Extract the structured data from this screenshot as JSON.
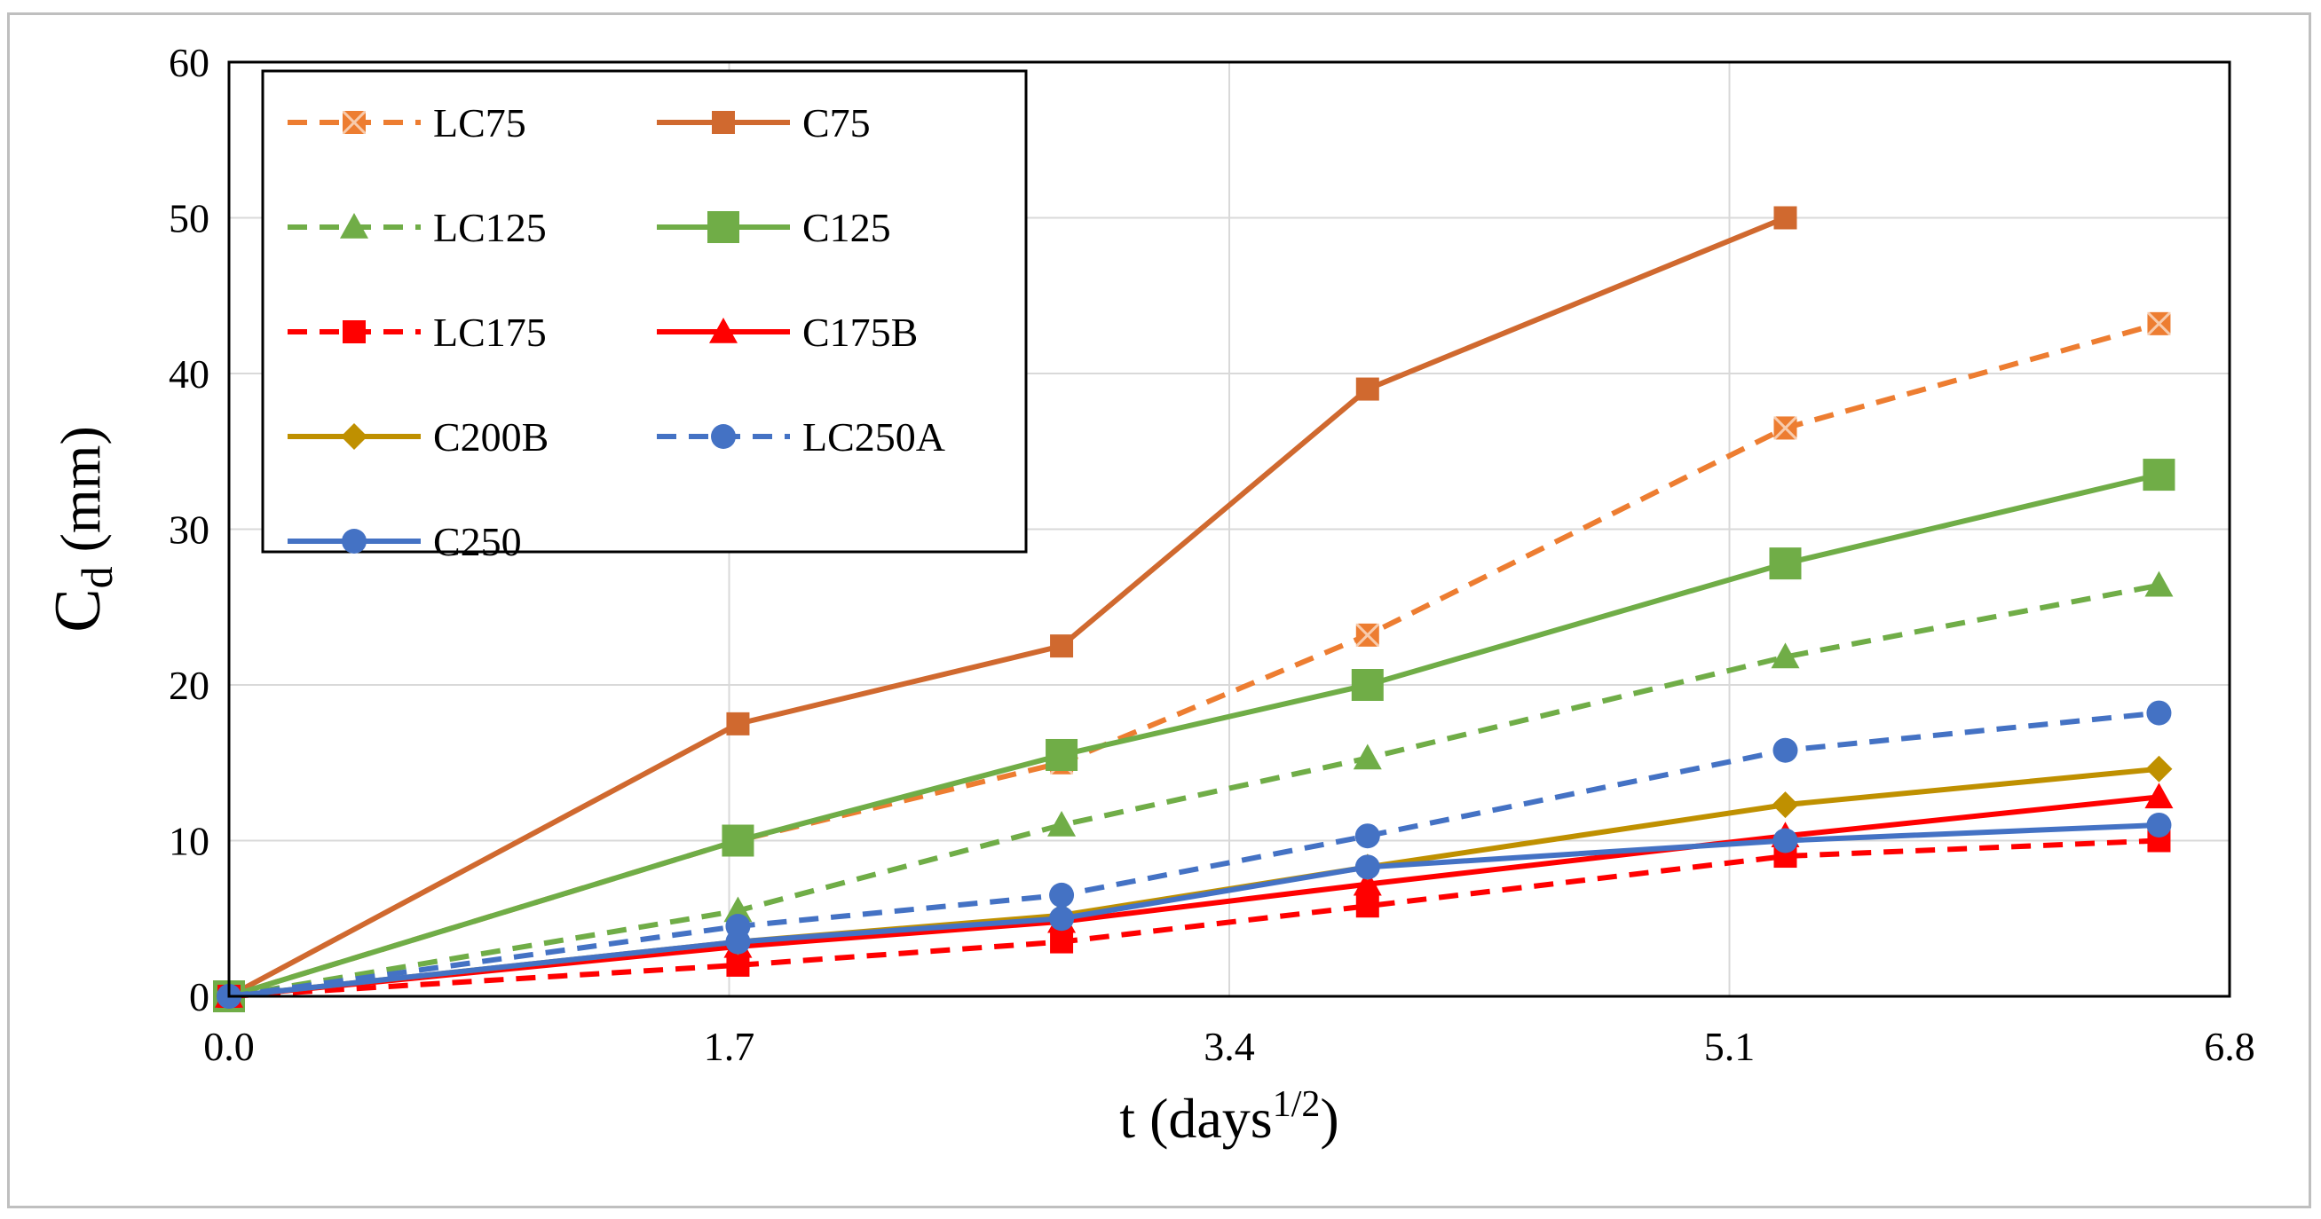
{
  "chart_data": {
    "type": "line",
    "title": "",
    "xlabel": "t (days",
    "xlabel_sup": "1/2",
    "xlabel_close": ")",
    "ylabel_main": "C",
    "ylabel_sub": "d",
    "ylabel_unit": " (mm)",
    "xlim": [
      0,
      6.8
    ],
    "ylim": [
      0,
      60
    ],
    "xticks": [
      "0.0",
      "1.7",
      "3.4",
      "5.1",
      "6.8"
    ],
    "xtick_values": [
      0,
      1.7,
      3.4,
      5.1,
      6.8
    ],
    "yticks": [
      "0",
      "10",
      "20",
      "30",
      "40",
      "50",
      "60"
    ],
    "ytick_values": [
      0,
      10,
      20,
      30,
      40,
      50,
      60
    ],
    "grid": true,
    "legend_position": "top-left",
    "series": [
      {
        "name": "LC75",
        "color": "#ED7D31",
        "dash": true,
        "marker": "x-square",
        "x": [
          0,
          1.73,
          2.83,
          3.87,
          5.29,
          6.56
        ],
        "y": [
          0,
          10,
          15,
          23.2,
          36.5,
          43.2
        ]
      },
      {
        "name": "C75",
        "color": "#D0692F",
        "dash": false,
        "marker": "square",
        "x": [
          0,
          1.73,
          2.83,
          3.87,
          5.29
        ],
        "y": [
          0,
          17.5,
          22.5,
          39,
          50
        ]
      },
      {
        "name": "LC125",
        "color": "#70AD47",
        "dash": true,
        "marker": "triangle",
        "x": [
          0,
          1.73,
          2.83,
          3.87,
          5.29,
          6.56
        ],
        "y": [
          0,
          5.5,
          11,
          15.3,
          21.8,
          26.4
        ]
      },
      {
        "name": "C125",
        "color": "#70AD47",
        "dash": false,
        "marker": "square-large",
        "x": [
          0,
          1.73,
          2.83,
          3.87,
          5.29,
          6.56
        ],
        "y": [
          0,
          10,
          15.5,
          20,
          27.8,
          33.5
        ]
      },
      {
        "name": "LC175",
        "color": "#FF0000",
        "dash": true,
        "marker": "square",
        "x": [
          0,
          1.73,
          2.83,
          3.87,
          5.29,
          6.56
        ],
        "y": [
          0,
          2,
          3.5,
          5.8,
          9,
          10
        ]
      },
      {
        "name": "C175B",
        "color": "#FF0000",
        "dash": false,
        "marker": "triangle",
        "x": [
          0,
          1.73,
          2.83,
          3.87,
          5.29,
          6.56
        ],
        "y": [
          0,
          3.2,
          4.8,
          7.2,
          10.3,
          12.8
        ]
      },
      {
        "name": "C200B",
        "color": "#BF9000",
        "dash": false,
        "marker": "diamond",
        "x": [
          0,
          1.73,
          2.83,
          3.87,
          5.29,
          6.56
        ],
        "y": [
          0,
          3.5,
          5.2,
          8.3,
          12.3,
          14.6
        ]
      },
      {
        "name": "LC250A",
        "color": "#4472C4",
        "dash": true,
        "marker": "circle",
        "x": [
          0,
          1.73,
          2.83,
          3.87,
          5.29,
          6.56
        ],
        "y": [
          0,
          4.5,
          6.5,
          10.3,
          15.8,
          18.2
        ]
      },
      {
        "name": "C250",
        "color": "#4472C4",
        "dash": false,
        "marker": "circle",
        "x": [
          0,
          1.73,
          2.83,
          3.87,
          5.29,
          6.56
        ],
        "y": [
          0,
          3.5,
          5,
          8.3,
          10,
          11
        ]
      }
    ]
  }
}
